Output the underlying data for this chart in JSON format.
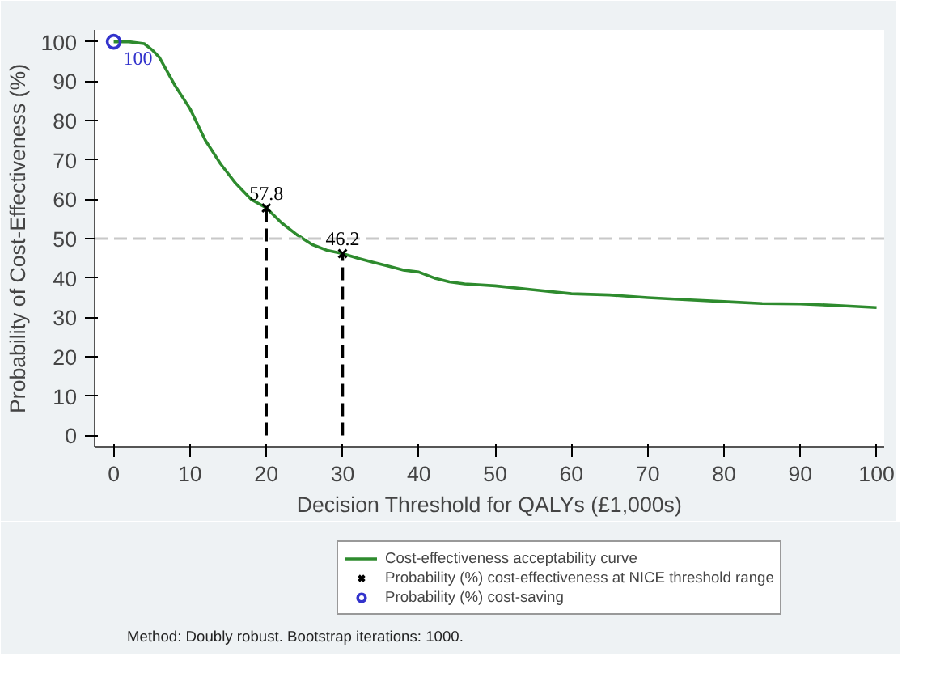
{
  "chart_data": {
    "type": "line",
    "xlabel": "Decision Threshold for QALYs (£1,000s)",
    "ylabel": "Probability of Cost-Effectiveness (%)",
    "xlim": [
      -2.5,
      101
    ],
    "ylim": [
      -3,
      103
    ],
    "xticks": [
      0,
      10,
      20,
      30,
      40,
      50,
      60,
      70,
      80,
      90,
      100
    ],
    "yticks": [
      0,
      10,
      20,
      30,
      40,
      50,
      60,
      70,
      80,
      90,
      100
    ],
    "grid": false,
    "legend": "bottom",
    "series": [
      {
        "name": "Cost-effectiveness acceptability curve",
        "color": "#2e8b2e",
        "line_style": "solid",
        "x": [
          0,
          2,
          4,
          5,
          6,
          8,
          10,
          12,
          14,
          16,
          18,
          20,
          22,
          24,
          26,
          28,
          30,
          32,
          34,
          36,
          38,
          40,
          42,
          44,
          46,
          50,
          55,
          60,
          65,
          70,
          75,
          80,
          85,
          90,
          95,
          100
        ],
        "values": [
          100,
          100,
          99.5,
          98,
          96,
          89,
          83,
          75,
          69,
          64,
          60,
          57.8,
          54,
          51,
          48.5,
          47,
          46.2,
          45,
          44,
          43,
          42,
          41.5,
          40,
          39,
          38.5,
          38,
          37,
          36,
          35.7,
          35,
          34.5,
          34,
          33.5,
          33.4,
          33,
          32.5
        ]
      },
      {
        "color": "#000000",
        "line_style": "dashed",
        "x": [
          20,
          20
        ],
        "values": [
          0,
          57.8
        ]
      },
      {
        "color": "#000000",
        "line_style": "dashed",
        "x": [
          30,
          30
        ],
        "values": [
          0,
          46.2
        ]
      },
      {
        "name": "Probability (%) cost-effectiveness at NICE threshold range",
        "type": "scatter",
        "marker": "cross",
        "color": "#000000",
        "x": [
          20,
          30
        ],
        "values": [
          57.8,
          46.2
        ],
        "data_labels": true
      },
      {
        "name": "Probability (%) cost-saving",
        "type": "scatter",
        "marker": "circle",
        "color": "#3333cc",
        "x": [
          0
        ],
        "values": [
          100
        ],
        "data_labels": true
      }
    ],
    "ref_lines": [
      {
        "axis": "y",
        "value": 50,
        "color": "#c8c8c8",
        "line_style": "dashed"
      }
    ],
    "annotations": [
      "Method: Doubly robust. Bootstrap iterations: 1000."
    ]
  }
}
